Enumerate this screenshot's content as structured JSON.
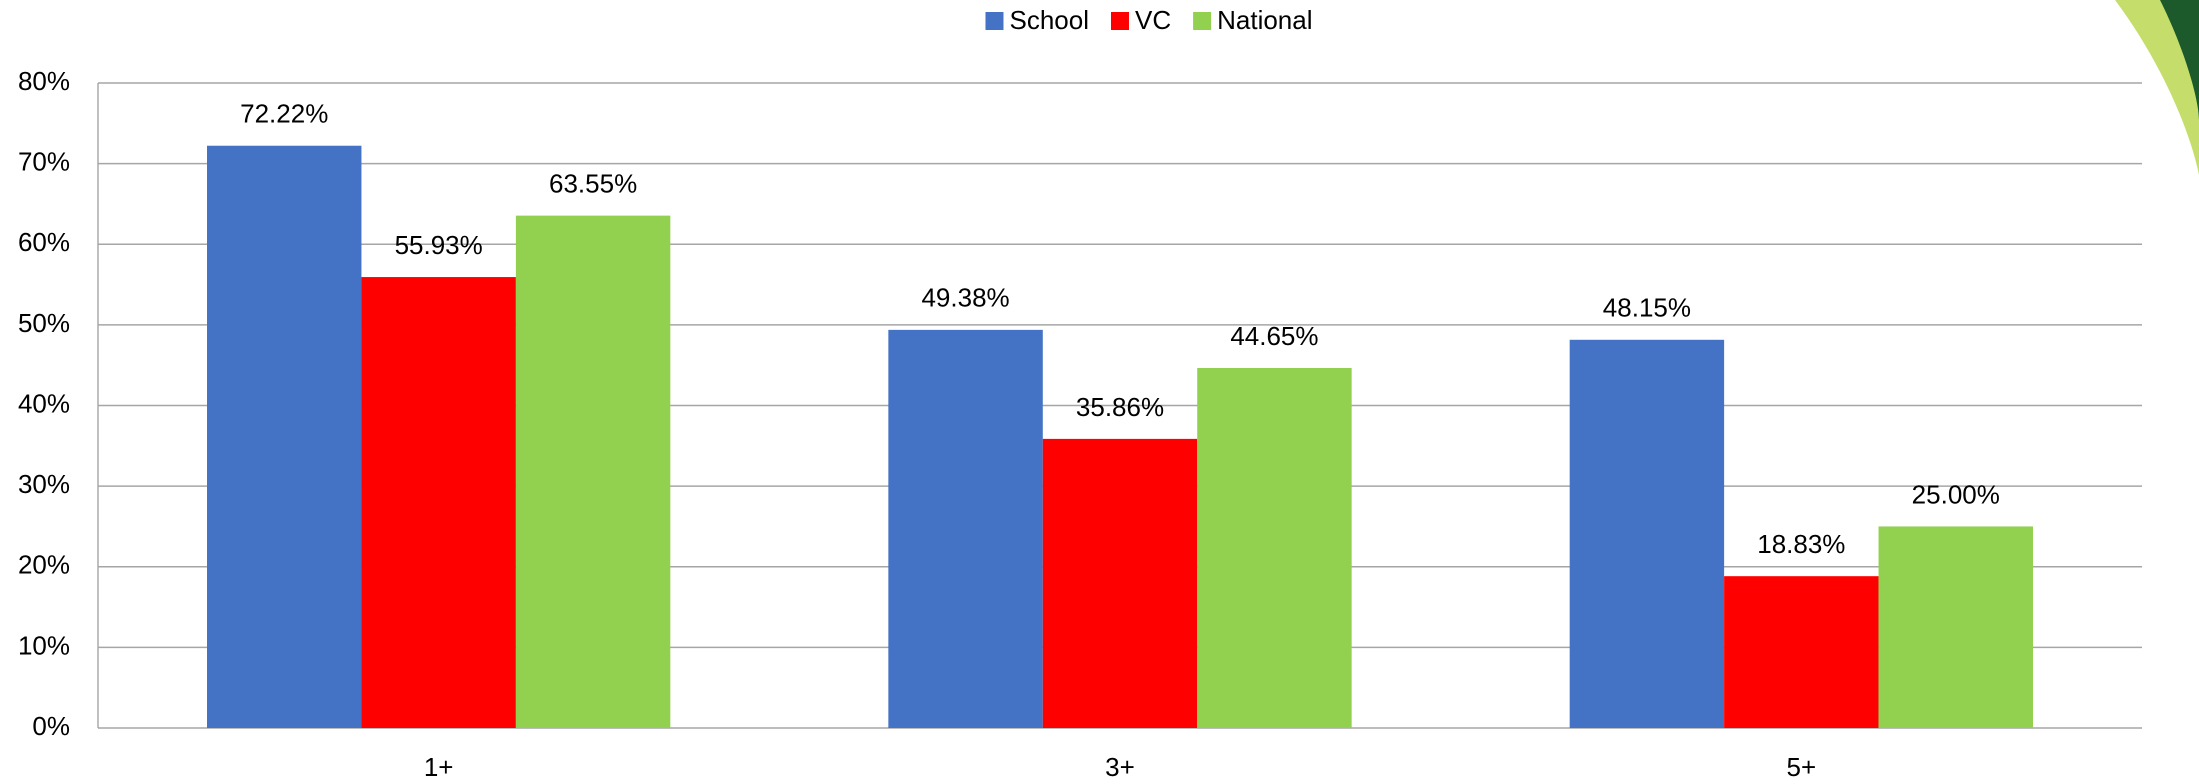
{
  "chart_data": {
    "type": "bar",
    "categories": [
      "1+",
      "3+",
      "5+"
    ],
    "series": [
      {
        "name": "School",
        "color": "#4472c4",
        "values": [
          72.22,
          49.38,
          48.15
        ],
        "value_labels": [
          "72.22%",
          "49.38%",
          "48.15%"
        ]
      },
      {
        "name": "VC",
        "color": "#ff0000",
        "values": [
          55.93,
          35.86,
          18.83
        ],
        "value_labels": [
          "55.93%",
          "35.86%",
          "18.83%"
        ]
      },
      {
        "name": "National",
        "color": "#92d050",
        "values": [
          63.55,
          44.65,
          25.0
        ],
        "value_labels": [
          "63.55%",
          "44.65%",
          "25.00%"
        ]
      }
    ],
    "ylim": [
      0,
      80
    ],
    "yticks": [
      {
        "value": 0,
        "label": "0%"
      },
      {
        "value": 10,
        "label": "10%"
      },
      {
        "value": 20,
        "label": "20%"
      },
      {
        "value": 30,
        "label": "30%"
      },
      {
        "value": 40,
        "label": "40%"
      },
      {
        "value": 50,
        "label": "50%"
      },
      {
        "value": 60,
        "label": "60%"
      },
      {
        "value": 70,
        "label": "70%"
      },
      {
        "value": 80,
        "label": "80%"
      }
    ],
    "grid": true,
    "legend": "top"
  }
}
